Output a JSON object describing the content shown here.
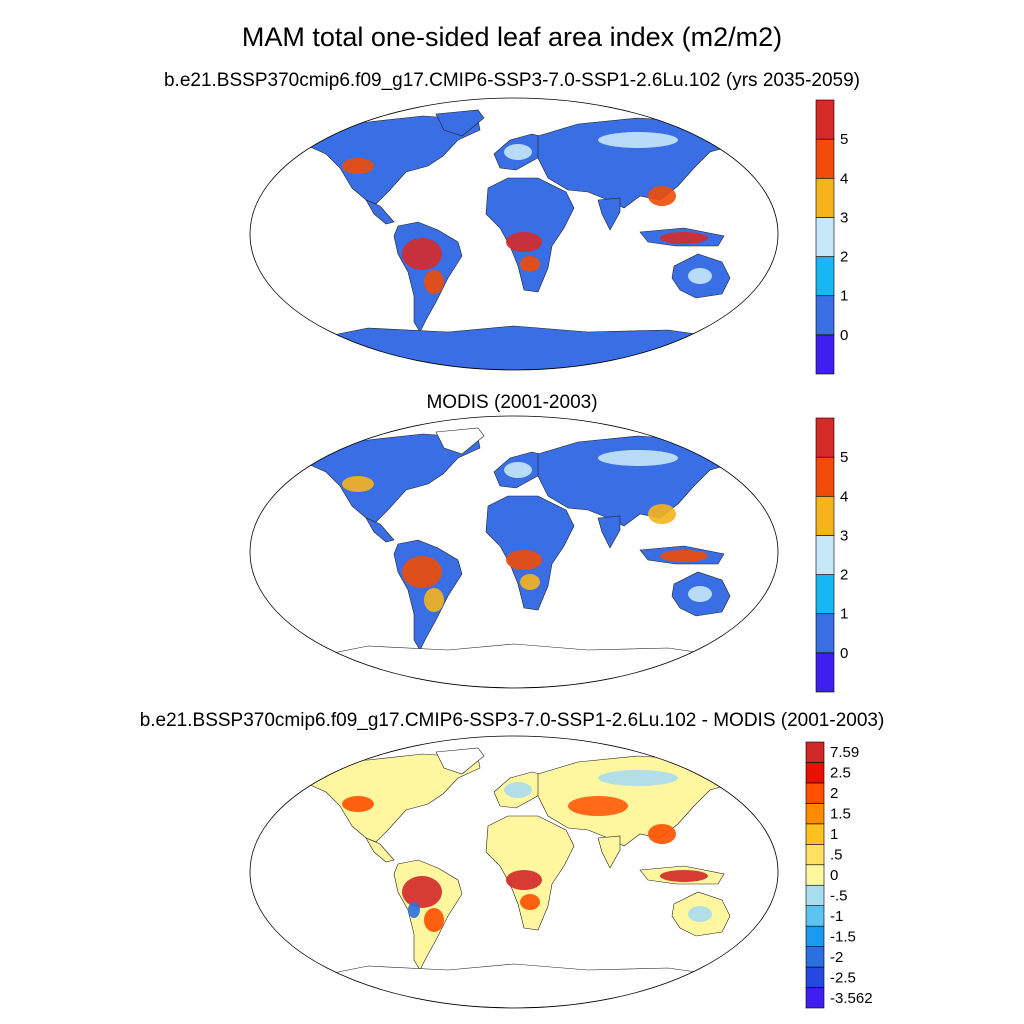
{
  "title": "MAM total one-sided leaf area index (m2/m2)",
  "panels": [
    {
      "subtitle": "b.e21.BSSP370cmip6.f09_g17.CMIP6-SSP3-7.0-SSP1-2.6Lu.102 (yrs 2035-2059)",
      "colorbar": {
        "colors": [
          "#3f1ff0",
          "#3a6ee4",
          "#15b8f0",
          "#c7e8f8",
          "#f5b41c",
          "#f04c08",
          "#d62a28"
        ],
        "labels": [
          "0",
          "1",
          "2",
          "3",
          "4",
          "5"
        ]
      }
    },
    {
      "subtitle": "MODIS (2001-2003)",
      "colorbar": {
        "colors": [
          "#3f1ff0",
          "#3a6ee4",
          "#15b8f0",
          "#c7e8f8",
          "#f5b41c",
          "#f04c08",
          "#d62a28"
        ],
        "labels": [
          "0",
          "1",
          "2",
          "3",
          "4",
          "5"
        ]
      }
    },
    {
      "subtitle": "b.e21.BSSP370cmip6.f09_g17.CMIP6-SSP3-7.0-SSP1-2.6Lu.102 - MODIS (2001-2003)",
      "colorbar": {
        "colors": [
          "#3f1ff0",
          "#2448e0",
          "#2a70e0",
          "#1a9af0",
          "#5cc4f0",
          "#a8dcee",
          "#fff6a0",
          "#ffe060",
          "#ffc020",
          "#ff8c00",
          "#ff5000",
          "#e81000",
          "#d22828"
        ],
        "labels": [
          "-3.562",
          "-2.5",
          "-2",
          "-1.5",
          "-1",
          "-.5",
          "0",
          ".5",
          "1",
          "1.5",
          "2",
          "2.5",
          "7.59"
        ]
      }
    }
  ],
  "map_colors": {
    "model": {
      "land": "#3a6ee4",
      "wet": "#d62a28",
      "mid": "#f04c08",
      "dry": "#c7e8f8",
      "ice": "#3a6ee4"
    },
    "modis": {
      "land": "#3a6ee4",
      "wet": "#f04c08",
      "mid": "#f5b41c",
      "dry": "#c7e8f8",
      "ice": "#ffffff"
    },
    "diff": {
      "land": "#fff6a0",
      "wet": "#d22828",
      "mid": "#ff5000",
      "dry": "#a8dcee",
      "ice": "#ffffff"
    }
  }
}
